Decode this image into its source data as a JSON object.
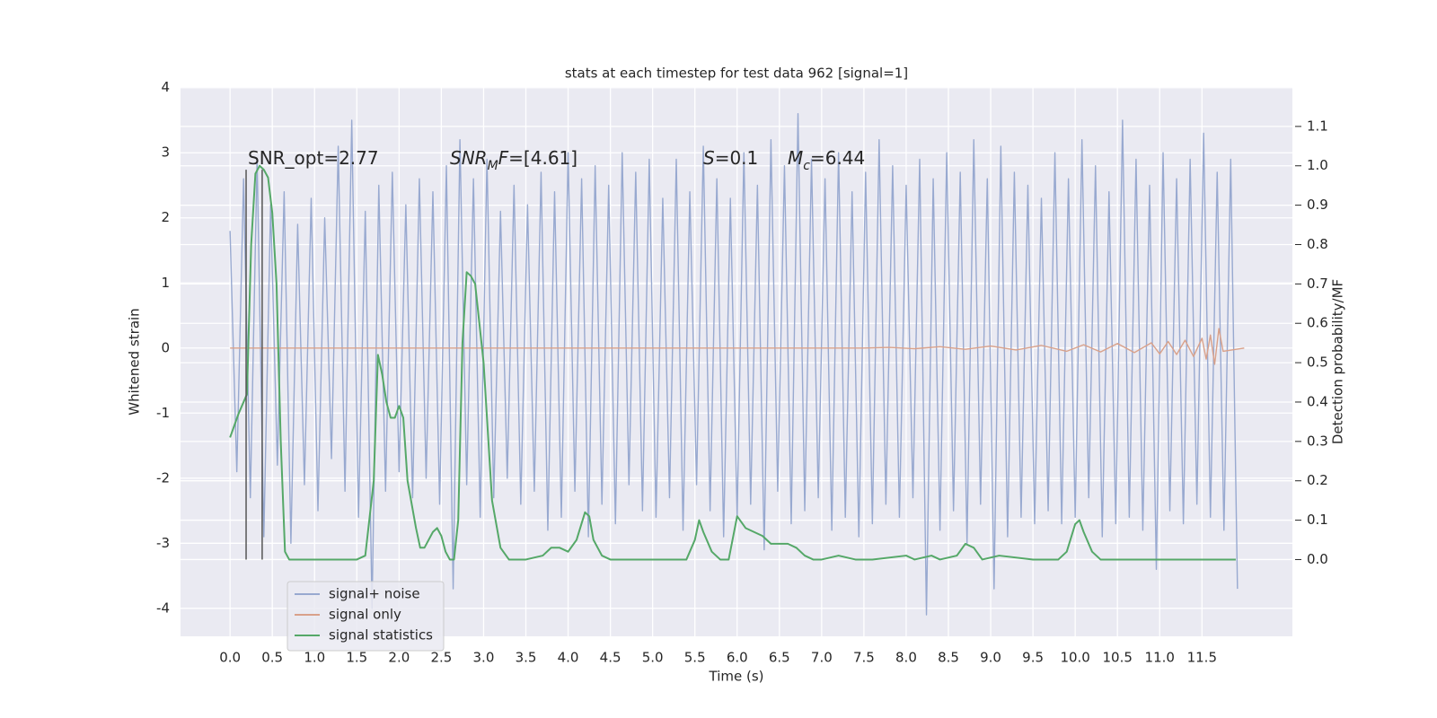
{
  "chart_data": {
    "type": "line",
    "title": "stats at each timestep for test data 962 [signal=1]",
    "x_label": "Time (s)",
    "y_label": "Whitened strain",
    "y2_label": "Detection probability/MF",
    "xlim": [
      -0.586,
      12.57
    ],
    "ylim": [
      -4.43,
      4.01
    ],
    "y2lim": [
      -0.195,
      1.2
    ],
    "xticks": [
      {
        "value": 0,
        "label": "0.0"
      },
      0.5,
      {
        "value": 1,
        "label": "1.0"
      },
      1.5,
      {
        "value": 2,
        "label": "2.0"
      },
      2.5,
      {
        "value": 3,
        "label": "3.0"
      },
      3.5,
      {
        "value": 4,
        "label": "4.0"
      },
      4.5,
      {
        "value": 5,
        "label": "5.0"
      },
      5.5,
      {
        "value": 6,
        "label": "6.0"
      },
      6.5,
      {
        "value": 7,
        "label": "7.0"
      },
      7.5,
      {
        "value": 8,
        "label": "8.0"
      },
      8.5,
      {
        "value": 9,
        "label": "9.0"
      },
      9.5,
      {
        "value": 10,
        "label": "10.0"
      },
      10.5,
      {
        "value": 11,
        "label": "11.0"
      },
      11.5
    ],
    "yticks": [
      -4,
      -3,
      -2,
      -1,
      0,
      1,
      2,
      3,
      4
    ],
    "y2ticks": [
      {
        "value": 0,
        "label": "0.0"
      },
      0.1,
      0.2,
      0.3,
      0.4,
      0.5,
      0.6,
      0.7,
      0.8,
      0.9,
      {
        "value": 1,
        "label": "1.0"
      },
      1.1
    ],
    "grid": true,
    "legend": "lower left",
    "series": [
      {
        "name": "signal+ noise",
        "color": "#98a9d0",
        "x": [
          0,
          0.08,
          0.16,
          0.24,
          0.32,
          0.4,
          0.48,
          0.56,
          0.64,
          0.72,
          0.8,
          0.88,
          0.96,
          1.04,
          1.12,
          1.2,
          1.28,
          1.36,
          1.44,
          1.52,
          1.6,
          1.68,
          1.76,
          1.84,
          1.92,
          2,
          2.08,
          2.16,
          2.24,
          2.32,
          2.4,
          2.48,
          2.56,
          2.64,
          2.72,
          2.8,
          2.88,
          2.96,
          3.04,
          3.12,
          3.2,
          3.28,
          3.36,
          3.44,
          3.52,
          3.6,
          3.68,
          3.76,
          3.84,
          3.92,
          4,
          4.08,
          4.16,
          4.24,
          4.32,
          4.4,
          4.48,
          4.56,
          4.64,
          4.72,
          4.8,
          4.88,
          4.96,
          5.04,
          5.12,
          5.2,
          5.28,
          5.36,
          5.44,
          5.52,
          5.6,
          5.68,
          5.76,
          5.84,
          5.92,
          6,
          6.08,
          6.16,
          6.24,
          6.32,
          6.4,
          6.48,
          6.56,
          6.64,
          6.72,
          6.8,
          6.88,
          6.96,
          7.04,
          7.12,
          7.2,
          7.28,
          7.36,
          7.44,
          7.52,
          7.6,
          7.68,
          7.76,
          7.84,
          7.92,
          8,
          8.08,
          8.16,
          8.24,
          8.32,
          8.4,
          8.48,
          8.56,
          8.64,
          8.72,
          8.8,
          8.88,
          8.96,
          9.04,
          9.12,
          9.2,
          9.28,
          9.36,
          9.44,
          9.52,
          9.6,
          9.68,
          9.76,
          9.84,
          9.92,
          10,
          10.08,
          10.16,
          10.24,
          10.32,
          10.4,
          10.48,
          10.56,
          10.64,
          10.72,
          10.8,
          10.88,
          10.96,
          11.04,
          11.12,
          11.2,
          11.28,
          11.36,
          11.44,
          11.52,
          11.6,
          11.68,
          11.76,
          11.84,
          11.92
        ],
        "values": [
          1.8,
          -1.9,
          2.6,
          -2.3,
          2.9,
          -2.9,
          2.2,
          -1.8,
          2.4,
          -3.0,
          1.9,
          -2.1,
          2.3,
          -2.5,
          2.0,
          -1.7,
          3.1,
          -2.2,
          3.5,
          -2.6,
          2.1,
          -4.0,
          2.5,
          -2.2,
          2.7,
          -1.9,
          2.2,
          -2.3,
          2.6,
          -2.0,
          2.4,
          -2.4,
          2.8,
          -3.7,
          3.2,
          -2.1,
          2.6,
          -2.6,
          2.9,
          -2.3,
          2.1,
          -2.0,
          2.5,
          -2.4,
          2.2,
          -2.2,
          2.7,
          -2.8,
          2.4,
          -2.6,
          3.0,
          -2.2,
          2.6,
          -2.9,
          2.8,
          -2.4,
          2.5,
          -2.7,
          3.0,
          -2.1,
          2.7,
          -2.5,
          2.9,
          -2.6,
          2.3,
          -2.3,
          2.9,
          -2.8,
          2.4,
          -2.1,
          3.1,
          -2.5,
          2.6,
          -2.9,
          2.3,
          -2.6,
          3.0,
          -2.4,
          2.5,
          -3.1,
          3.2,
          -2.2,
          2.8,
          -2.7,
          3.6,
          -2.5,
          2.9,
          -2.3,
          2.6,
          -2.8,
          3.0,
          -2.6,
          2.4,
          -2.9,
          2.7,
          -2.7,
          3.2,
          -2.4,
          2.8,
          -2.6,
          2.5,
          -2.3,
          2.9,
          -4.1,
          2.6,
          -2.8,
          3.0,
          -2.5,
          2.7,
          -3.0,
          3.2,
          -2.4,
          2.6,
          -3.7,
          3.1,
          -2.9,
          2.7,
          -2.6,
          2.5,
          -2.7,
          2.3,
          -2.5,
          3.0,
          -2.7,
          2.6,
          -2.6,
          3.2,
          -2.3,
          2.8,
          -2.9,
          2.4,
          -2.7,
          3.5,
          -2.6,
          2.9,
          -2.8,
          2.5,
          -3.4,
          3.0,
          -2.5,
          2.6,
          -2.7,
          2.9,
          -2.4,
          3.3,
          -2.6,
          2.7,
          -2.8,
          2.9,
          -3.7
        ]
      },
      {
        "name": "signal only",
        "color": "#d9a18a",
        "x": [
          0,
          7.5,
          7.8,
          8.1,
          8.4,
          8.7,
          9.0,
          9.3,
          9.6,
          9.9,
          10.1,
          10.3,
          10.5,
          10.7,
          10.9,
          11.0,
          11.1,
          11.2,
          11.3,
          11.4,
          11.5,
          11.55,
          11.6,
          11.65,
          11.7,
          11.75,
          12.0
        ],
        "values": [
          0,
          0,
          0.01,
          -0.01,
          0.02,
          -0.02,
          0.03,
          -0.03,
          0.04,
          -0.05,
          0.05,
          -0.06,
          0.07,
          -0.07,
          0.08,
          -0.09,
          0.1,
          -0.1,
          0.12,
          -0.13,
          0.15,
          -0.17,
          0.2,
          -0.25,
          0.3,
          -0.05,
          0
        ]
      },
      {
        "name": "signal statistics",
        "color": "#55a868",
        "axis": "y2",
        "x": [
          0,
          0.1,
          0.2,
          0.25,
          0.3,
          0.35,
          0.4,
          0.45,
          0.5,
          0.55,
          0.6,
          0.65,
          0.7,
          1.0,
          1.5,
          1.6,
          1.7,
          1.75,
          1.8,
          1.85,
          1.9,
          1.95,
          2.0,
          2.05,
          2.1,
          2.2,
          2.25,
          2.3,
          2.4,
          2.45,
          2.5,
          2.55,
          2.6,
          2.65,
          2.7,
          2.75,
          2.8,
          2.85,
          2.9,
          3.0,
          3.1,
          3.2,
          3.3,
          3.5,
          3.7,
          3.8,
          3.9,
          4.0,
          4.1,
          4.2,
          4.25,
          4.3,
          4.4,
          4.5,
          5.0,
          5.4,
          5.5,
          5.55,
          5.6,
          5.7,
          5.8,
          5.9,
          6.0,
          6.1,
          6.2,
          6.3,
          6.4,
          6.5,
          6.6,
          6.7,
          6.8,
          6.9,
          7.0,
          7.2,
          7.4,
          7.6,
          8.0,
          8.1,
          8.3,
          8.4,
          8.6,
          8.7,
          8.8,
          8.9,
          9.1,
          9.5,
          9.8,
          9.9,
          10.0,
          10.05,
          10.1,
          10.2,
          10.3,
          11.0,
          11.5,
          11.9
        ],
        "values": [
          0.31,
          0.37,
          0.42,
          0.8,
          0.98,
          1.0,
          0.99,
          0.97,
          0.88,
          0.7,
          0.3,
          0.02,
          0,
          0,
          0,
          0.01,
          0.2,
          0.52,
          0.47,
          0.4,
          0.36,
          0.36,
          0.39,
          0.36,
          0.2,
          0.08,
          0.03,
          0.03,
          0.07,
          0.08,
          0.06,
          0.02,
          0,
          0,
          0.1,
          0.55,
          0.73,
          0.72,
          0.7,
          0.5,
          0.15,
          0.03,
          0,
          0,
          0.01,
          0.03,
          0.03,
          0.02,
          0.05,
          0.12,
          0.11,
          0.05,
          0.01,
          0,
          0,
          0,
          0.05,
          0.1,
          0.07,
          0.02,
          0,
          0,
          0.11,
          0.08,
          0.07,
          0.06,
          0.04,
          0.04,
          0.04,
          0.03,
          0.01,
          0,
          0,
          0.01,
          0,
          0,
          0.01,
          0,
          0.01,
          0,
          0.01,
          0.04,
          0.03,
          0,
          0.01,
          0,
          0,
          0.02,
          0.09,
          0.1,
          0.07,
          0.02,
          0,
          0,
          0,
          0
        ]
      }
    ],
    "vlines": [
      0.19,
      0.38
    ],
    "vline_span_y2": [
      0,
      0.99
    ],
    "vline_color": "#555555",
    "annotations": [
      {
        "parts": [
          {
            "text": "SNR_opt=2.77"
          }
        ]
      },
      {
        "parts": [
          {
            "text": "SNR",
            "italic": true
          },
          {
            "text": "M",
            "italic": true,
            "sub": true
          },
          {
            "text": "F",
            "italic": true
          },
          {
            "text": "=[4.61]"
          }
        ]
      },
      {
        "parts": [
          {
            "text": "S",
            "italic": true
          },
          {
            "text": "=0.1"
          }
        ]
      },
      {
        "parts": [
          {
            "text": "M",
            "italic": true
          },
          {
            "text": "c",
            "italic": true,
            "sub": true
          },
          {
            "text": "=6.44"
          }
        ]
      }
    ]
  }
}
